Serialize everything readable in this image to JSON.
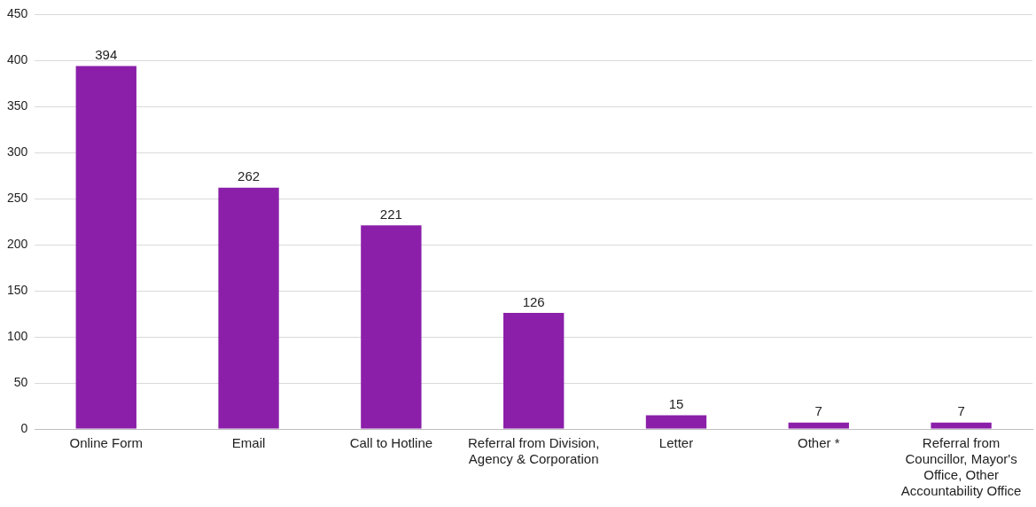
{
  "chart_data": {
    "type": "bar",
    "categories": [
      "Online Form",
      "Email",
      "Call to Hotline",
      "Referral from Division, Agency & Corporation",
      "Letter",
      "Other *",
      "Referral from Councillor, Mayor's Office, Other Accountability Office"
    ],
    "values": [
      394,
      262,
      221,
      126,
      15,
      7,
      7
    ],
    "color": "#8b1fa9",
    "ylim": [
      0,
      450
    ],
    "yticks": [
      0,
      50,
      100,
      150,
      200,
      250,
      300,
      350,
      400,
      450
    ],
    "grid": "y",
    "data_labels": true
  }
}
